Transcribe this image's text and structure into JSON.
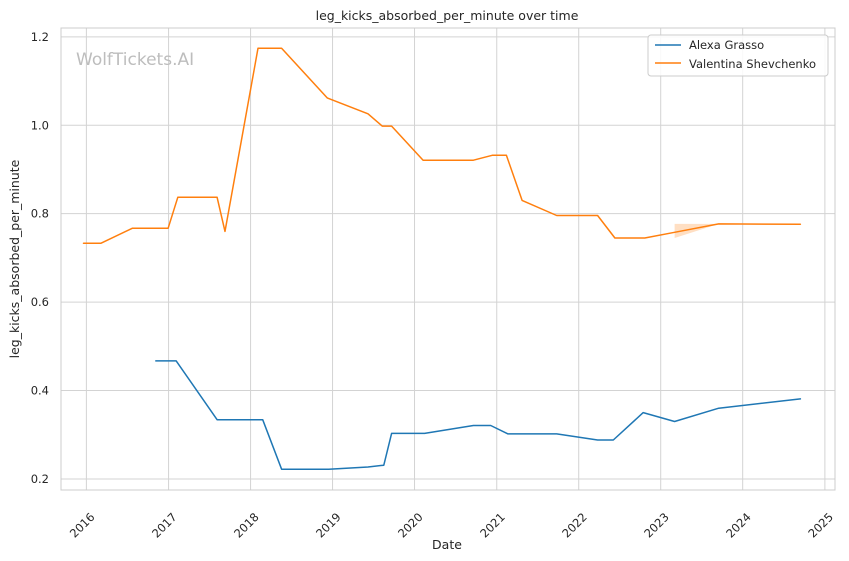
{
  "chart_data": {
    "type": "line",
    "title": "leg_kicks_absorbed_per_minute over time",
    "xlabel": "Date",
    "ylabel": "leg_kicks_absorbed_per_minute",
    "watermark": "WolfTickets.AI",
    "x_ticks": [
      "2016",
      "2017",
      "2018",
      "2019",
      "2020",
      "2021",
      "2022",
      "2023",
      "2024",
      "2025"
    ],
    "y_ticks": [
      "0.2",
      "0.4",
      "0.6",
      "0.8",
      "1.0",
      "1.2"
    ],
    "xlim": [
      "2015-09-10",
      "2025-02-15"
    ],
    "ylim": [
      0.175,
      1.22
    ],
    "grid": true,
    "legend_position": "top-right",
    "colors": {
      "Alexa Grasso": "#1f77b4",
      "Valentina Shevchenko": "#ff7f0e"
    },
    "series": [
      {
        "name": "Alexa Grasso",
        "points": [
          [
            "2016-11-05",
            0.467
          ],
          [
            "2017-02-04",
            0.467
          ],
          [
            "2017-08-05",
            0.334
          ],
          [
            "2018-02-24",
            0.334
          ],
          [
            "2018-05-19",
            0.222
          ],
          [
            "2018-12-15",
            0.222
          ],
          [
            "2019-06-08",
            0.227
          ],
          [
            "2019-08-17",
            0.231
          ],
          [
            "2019-09-21",
            0.303
          ],
          [
            "2020-02-15",
            0.303
          ],
          [
            "2020-09-19",
            0.321
          ],
          [
            "2020-12-05",
            0.321
          ],
          [
            "2021-02-20",
            0.302
          ],
          [
            "2021-09-25",
            0.302
          ],
          [
            "2022-03-26",
            0.288
          ],
          [
            "2022-06-04",
            0.288
          ],
          [
            "2022-10-15",
            0.35
          ],
          [
            "2023-03-04",
            0.33
          ],
          [
            "2023-09-16",
            0.36
          ],
          [
            "2024-09-14",
            0.381
          ]
        ]
      },
      {
        "name": "Valentina Shevchenko",
        "points": [
          [
            "2015-12-19",
            0.733
          ],
          [
            "2016-03-05",
            0.733
          ],
          [
            "2016-07-23",
            0.767
          ],
          [
            "2016-12-30",
            0.767
          ],
          [
            "2017-02-11",
            0.837
          ],
          [
            "2017-08-05",
            0.837
          ],
          [
            "2017-09-09",
            0.76
          ],
          [
            "2018-02-03",
            1.174
          ],
          [
            "2018-05-19",
            1.174
          ],
          [
            "2018-12-08",
            1.062
          ],
          [
            "2019-06-08",
            1.026
          ],
          [
            "2019-08-10",
            0.998
          ],
          [
            "2019-09-21",
            0.998
          ],
          [
            "2020-02-08",
            0.921
          ],
          [
            "2020-09-19",
            0.921
          ],
          [
            "2020-12-12",
            0.932
          ],
          [
            "2021-02-13",
            0.932
          ],
          [
            "2021-04-24",
            0.83
          ],
          [
            "2021-09-25",
            0.796
          ],
          [
            "2022-03-26",
            0.796
          ],
          [
            "2022-06-11",
            0.745
          ],
          [
            "2022-10-22",
            0.745
          ],
          [
            "2023-03-04",
            0.758
          ],
          [
            "2023-09-16",
            0.777
          ],
          [
            "2024-09-14",
            0.776
          ]
        ],
        "band": [
          [
            "2023-03-04",
            0.745,
            0.777
          ],
          [
            "2023-09-16",
            0.777,
            0.777
          ]
        ]
      }
    ]
  }
}
